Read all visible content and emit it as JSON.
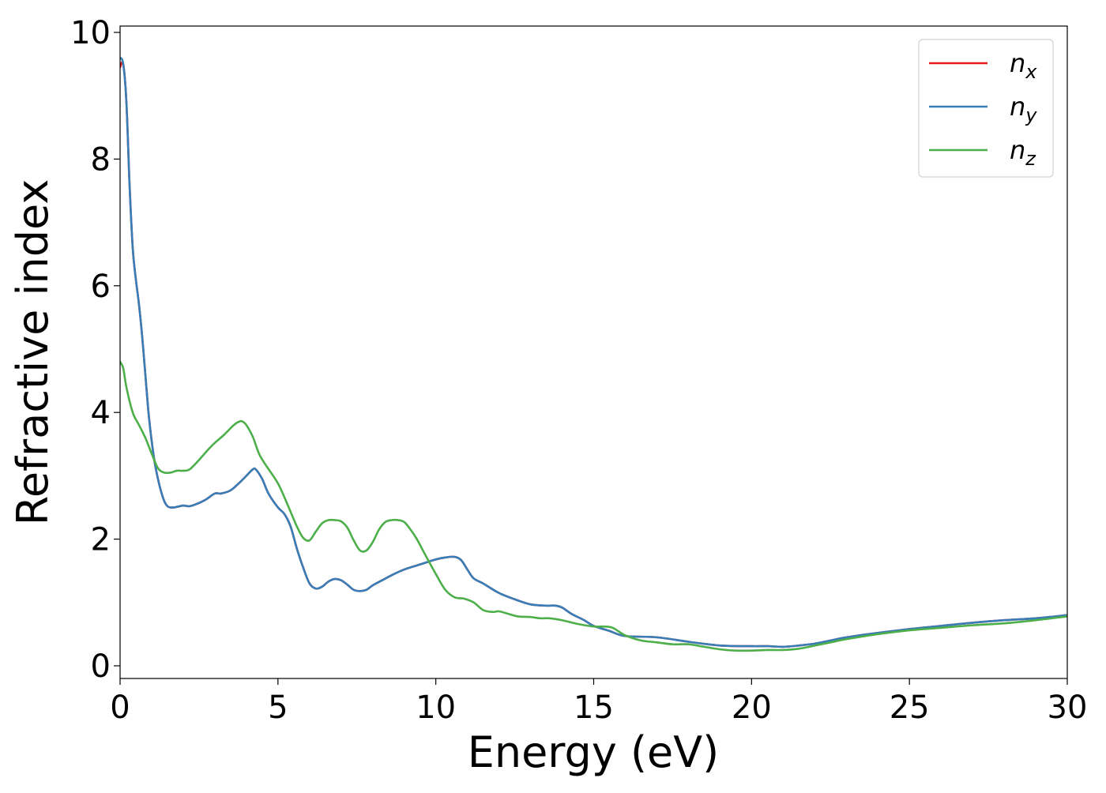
{
  "chart_data": {
    "type": "line",
    "title": "",
    "xlabel": "Energy (eV)",
    "ylabel": "Refractive index",
    "xlim": [
      0,
      30
    ],
    "ylim": [
      -0.2,
      10.1
    ],
    "xticks": [
      0,
      5,
      10,
      15,
      20,
      25,
      30
    ],
    "yticks": [
      0,
      2,
      4,
      6,
      8,
      10
    ],
    "grid": false,
    "legend_position": "top-right",
    "series": [
      {
        "name": "n",
        "subscript": "x",
        "color": "#e41a1c",
        "x": [
          0,
          0.1,
          0.2,
          0.3,
          0.4,
          0.5,
          0.6,
          0.7,
          0.8,
          0.9,
          1.0,
          1.1,
          1.2,
          1.3,
          1.4,
          1.5,
          1.6,
          1.7,
          1.8,
          1.9,
          2.0,
          2.2,
          2.4,
          2.7,
          3.0,
          3.2,
          3.5,
          3.8,
          4.0,
          4.2,
          4.3,
          4.5,
          4.7,
          5.0,
          5.2,
          5.4,
          5.6,
          5.8,
          6.0,
          6.2,
          6.4,
          6.6,
          6.8,
          7.0,
          7.2,
          7.4,
          7.6,
          7.8,
          8.0,
          8.3,
          8.6,
          9.0,
          9.5,
          10.0,
          10.3,
          10.6,
          10.8,
          11.0,
          11.2,
          11.5,
          12.0,
          12.5,
          13.0,
          13.5,
          13.8,
          14.0,
          14.3,
          14.7,
          15.0,
          15.5,
          16.0,
          17.0,
          18.0,
          19.0,
          20.0,
          20.5,
          21.0,
          21.5,
          22.0,
          22.5,
          23.0,
          24.0,
          25.0,
          26.0,
          27.0,
          28.0,
          29.0,
          30.0
        ],
        "y": [
          9.45,
          9.5,
          8.9,
          7.6,
          6.6,
          6.1,
          5.7,
          5.2,
          4.6,
          4.0,
          3.55,
          3.2,
          2.95,
          2.75,
          2.6,
          2.52,
          2.5,
          2.5,
          2.51,
          2.52,
          2.53,
          2.52,
          2.55,
          2.62,
          2.72,
          2.72,
          2.77,
          2.9,
          3.0,
          3.1,
          3.1,
          2.95,
          2.72,
          2.5,
          2.4,
          2.2,
          1.85,
          1.55,
          1.3,
          1.22,
          1.25,
          1.33,
          1.37,
          1.35,
          1.28,
          1.2,
          1.18,
          1.2,
          1.27,
          1.35,
          1.43,
          1.52,
          1.6,
          1.68,
          1.71,
          1.72,
          1.67,
          1.52,
          1.38,
          1.3,
          1.15,
          1.05,
          0.97,
          0.95,
          0.95,
          0.92,
          0.82,
          0.72,
          0.63,
          0.55,
          0.47,
          0.45,
          0.38,
          0.32,
          0.31,
          0.31,
          0.3,
          0.32,
          0.35,
          0.4,
          0.45,
          0.52,
          0.58,
          0.63,
          0.68,
          0.72,
          0.75,
          0.8
        ]
      },
      {
        "name": "n",
        "subscript": "y",
        "color": "#377eb8",
        "x": [
          0,
          0.1,
          0.2,
          0.3,
          0.4,
          0.5,
          0.6,
          0.7,
          0.8,
          0.9,
          1.0,
          1.1,
          1.2,
          1.3,
          1.4,
          1.5,
          1.6,
          1.7,
          1.8,
          1.9,
          2.0,
          2.2,
          2.4,
          2.7,
          3.0,
          3.2,
          3.5,
          3.8,
          4.0,
          4.2,
          4.3,
          4.5,
          4.7,
          5.0,
          5.2,
          5.4,
          5.6,
          5.8,
          6.0,
          6.2,
          6.4,
          6.6,
          6.8,
          7.0,
          7.2,
          7.4,
          7.6,
          7.8,
          8.0,
          8.3,
          8.6,
          9.0,
          9.5,
          10.0,
          10.3,
          10.6,
          10.8,
          11.0,
          11.2,
          11.5,
          12.0,
          12.5,
          13.0,
          13.5,
          13.8,
          14.0,
          14.3,
          14.7,
          15.0,
          15.5,
          16.0,
          17.0,
          18.0,
          19.0,
          20.0,
          20.5,
          21.0,
          21.5,
          22.0,
          22.5,
          23.0,
          24.0,
          25.0,
          26.0,
          27.0,
          28.0,
          29.0,
          30.0
        ],
        "y": [
          9.6,
          9.5,
          8.9,
          7.6,
          6.6,
          6.1,
          5.7,
          5.2,
          4.6,
          4.0,
          3.55,
          3.2,
          2.95,
          2.75,
          2.6,
          2.52,
          2.5,
          2.5,
          2.51,
          2.52,
          2.53,
          2.52,
          2.55,
          2.62,
          2.72,
          2.72,
          2.77,
          2.9,
          3.0,
          3.1,
          3.1,
          2.95,
          2.72,
          2.5,
          2.4,
          2.2,
          1.85,
          1.55,
          1.3,
          1.22,
          1.25,
          1.33,
          1.37,
          1.35,
          1.28,
          1.2,
          1.18,
          1.2,
          1.27,
          1.35,
          1.43,
          1.52,
          1.6,
          1.68,
          1.71,
          1.72,
          1.67,
          1.52,
          1.38,
          1.3,
          1.15,
          1.05,
          0.97,
          0.95,
          0.95,
          0.92,
          0.82,
          0.72,
          0.63,
          0.55,
          0.47,
          0.45,
          0.38,
          0.32,
          0.31,
          0.31,
          0.3,
          0.32,
          0.35,
          0.4,
          0.45,
          0.52,
          0.58,
          0.63,
          0.68,
          0.72,
          0.75,
          0.8
        ]
      },
      {
        "name": "n",
        "subscript": "z",
        "color": "#4daf4a",
        "x": [
          0,
          0.1,
          0.2,
          0.4,
          0.6,
          0.8,
          1.0,
          1.2,
          1.4,
          1.6,
          1.8,
          2.0,
          2.2,
          2.5,
          2.8,
          3.0,
          3.3,
          3.6,
          3.8,
          3.9,
          4.0,
          4.2,
          4.4,
          4.6,
          5.0,
          5.3,
          5.6,
          5.8,
          6.0,
          6.2,
          6.4,
          6.6,
          6.8,
          7.0,
          7.2,
          7.4,
          7.6,
          7.8,
          8.0,
          8.2,
          8.4,
          8.6,
          8.8,
          9.0,
          9.2,
          9.4,
          9.7,
          10.0,
          10.3,
          10.6,
          10.9,
          11.2,
          11.5,
          11.8,
          12.0,
          12.3,
          12.6,
          13.0,
          13.3,
          13.6,
          14.0,
          14.5,
          15.0,
          15.3,
          15.6,
          16.0,
          16.5,
          17.0,
          17.5,
          18.0,
          18.5,
          19.0,
          19.5,
          20.0,
          20.5,
          21.0,
          21.5,
          22.0,
          22.5,
          23.0,
          24.0,
          25.0,
          26.0,
          27.0,
          28.0,
          29.0,
          30.0
        ],
        "y": [
          4.8,
          4.7,
          4.4,
          4.0,
          3.8,
          3.6,
          3.35,
          3.12,
          3.05,
          3.05,
          3.08,
          3.08,
          3.1,
          3.25,
          3.42,
          3.52,
          3.65,
          3.8,
          3.86,
          3.85,
          3.8,
          3.62,
          3.35,
          3.18,
          2.88,
          2.55,
          2.2,
          2.02,
          1.98,
          2.12,
          2.25,
          2.3,
          2.3,
          2.28,
          2.18,
          1.98,
          1.82,
          1.82,
          1.95,
          2.15,
          2.27,
          2.3,
          2.3,
          2.27,
          2.15,
          2.0,
          1.72,
          1.45,
          1.2,
          1.08,
          1.06,
          1.0,
          0.88,
          0.85,
          0.86,
          0.82,
          0.78,
          0.77,
          0.75,
          0.75,
          0.72,
          0.66,
          0.62,
          0.62,
          0.6,
          0.48,
          0.4,
          0.37,
          0.34,
          0.34,
          0.3,
          0.26,
          0.24,
          0.24,
          0.25,
          0.25,
          0.27,
          0.32,
          0.37,
          0.42,
          0.5,
          0.56,
          0.6,
          0.64,
          0.67,
          0.72,
          0.78
        ]
      }
    ]
  }
}
